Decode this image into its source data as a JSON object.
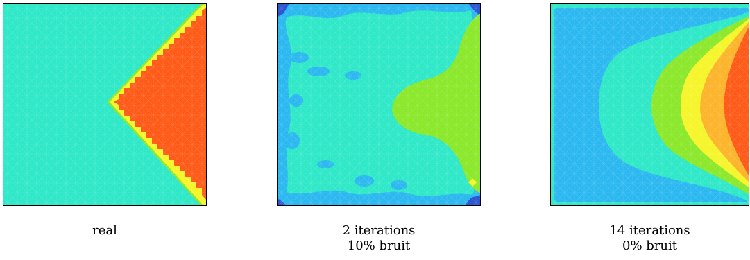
{
  "panels": [
    {
      "caption_lines": [
        "real"
      ]
    },
    {
      "caption_lines": [
        "2 iterations",
        "10% bruit"
      ]
    },
    {
      "caption_lines": [
        "14 iterations",
        "0% bruit"
      ]
    }
  ],
  "colors": {
    "cyan": "#2ee8c8",
    "blue_light": "#2bb8f0",
    "blue": "#2b8de6",
    "blue_dark": "#2a55d0",
    "green": "#8be82a",
    "yellow": "#f5f52a",
    "orange": "#fcb42a",
    "red": "#ff5a18",
    "frame": "#000000"
  }
}
